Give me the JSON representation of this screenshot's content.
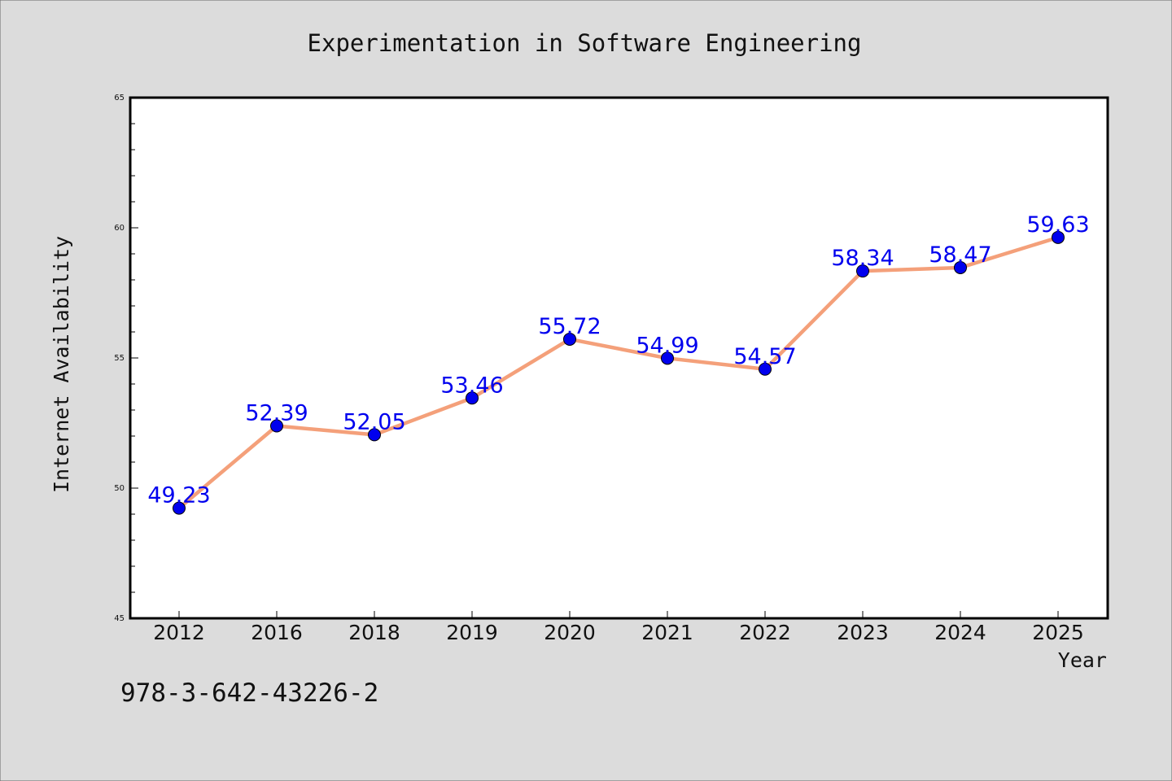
{
  "isbn": "978-3-642-43226-2",
  "chart_data": {
    "type": "line",
    "title": "Experimentation in Software Engineering",
    "xlabel": "Year",
    "ylabel": "Internet Availability",
    "categories": [
      "2012",
      "2016",
      "2018",
      "2019",
      "2020",
      "2021",
      "2022",
      "2023",
      "2024",
      "2025"
    ],
    "values": [
      49.23,
      52.39,
      52.05,
      53.46,
      55.72,
      54.99,
      54.57,
      58.34,
      58.47,
      59.63
    ],
    "data_labels": [
      "49.23",
      "52.39",
      "52.05",
      "53.46",
      "55.72",
      "54.99",
      "54.57",
      "58.34",
      "58.47",
      "59.63"
    ],
    "ylim": [
      45,
      65
    ],
    "yticks": [
      "45",
      "50",
      "55",
      "60",
      "65"
    ],
    "grid": false,
    "line_color": "#f4a07a",
    "marker_color": "#0000ee",
    "label_color": "#0000ee"
  }
}
